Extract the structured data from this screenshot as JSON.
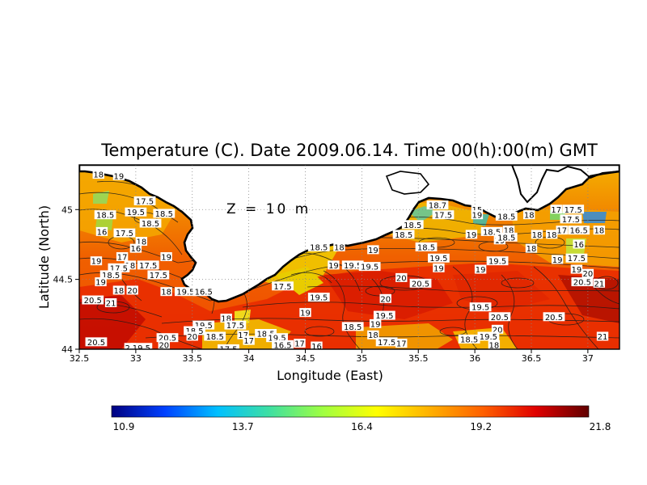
{
  "title": "Temperature (C). Date 2009.06.14. Time 00(h):00(m) GMT",
  "depth_label": "Z = 10 m",
  "xlabel": "Longitude (East)",
  "ylabel": "Latitude (North)",
  "x_ticks": [
    "32.5",
    "33",
    "33.5",
    "34",
    "34.5",
    "35",
    "35.5",
    "36",
    "36.5",
    "37"
  ],
  "y_ticks": [
    "44",
    "44.5",
    "45"
  ],
  "colorbar": {
    "labels": [
      "10.9",
      "13.7",
      "16.4",
      "19.2",
      "21.8"
    ],
    "colors": [
      "#000080",
      "#0040ff",
      "#00c0ff",
      "#40e0a0",
      "#a0ff40",
      "#ffff00",
      "#ffb000",
      "#ff6000",
      "#e00000",
      "#600000"
    ]
  },
  "contour_labels": [
    {
      "t": "18",
      "lon": 32.67,
      "lat": 45.25
    },
    {
      "t": "19",
      "lon": 32.85,
      "lat": 45.24
    },
    {
      "t": "17.5",
      "lon": 33.08,
      "lat": 45.06
    },
    {
      "t": "19.5",
      "lon": 33.0,
      "lat": 44.98
    },
    {
      "t": "18.5",
      "lon": 33.25,
      "lat": 44.97
    },
    {
      "t": "18.5",
      "lon": 32.73,
      "lat": 44.96
    },
    {
      "t": "18.5",
      "lon": 33.13,
      "lat": 44.9
    },
    {
      "t": "16",
      "lon": 32.7,
      "lat": 44.84
    },
    {
      "t": "17.5",
      "lon": 32.9,
      "lat": 44.83
    },
    {
      "t": "18",
      "lon": 33.05,
      "lat": 44.77
    },
    {
      "t": "17",
      "lon": 32.88,
      "lat": 44.66
    },
    {
      "t": "16",
      "lon": 33.0,
      "lat": 44.72
    },
    {
      "t": "18",
      "lon": 32.95,
      "lat": 44.6
    },
    {
      "t": "17.5",
      "lon": 33.11,
      "lat": 44.6
    },
    {
      "t": "19",
      "lon": 32.65,
      "lat": 44.63
    },
    {
      "t": "17.5",
      "lon": 32.85,
      "lat": 44.58
    },
    {
      "t": "18.5",
      "lon": 32.78,
      "lat": 44.53
    },
    {
      "t": "17.5",
      "lon": 33.2,
      "lat": 44.53
    },
    {
      "t": "19",
      "lon": 32.69,
      "lat": 44.48
    },
    {
      "t": "18",
      "lon": 32.85,
      "lat": 44.42
    },
    {
      "t": "20",
      "lon": 32.97,
      "lat": 44.42
    },
    {
      "t": "20.5",
      "lon": 32.62,
      "lat": 44.35
    },
    {
      "t": "21",
      "lon": 32.78,
      "lat": 44.33
    },
    {
      "t": "18",
      "lon": 33.27,
      "lat": 44.41
    },
    {
      "t": "19.5",
      "lon": 33.44,
      "lat": 44.41
    },
    {
      "t": "16.5",
      "lon": 33.6,
      "lat": 44.41
    },
    {
      "t": "19",
      "lon": 33.27,
      "lat": 44.66
    },
    {
      "t": "18",
      "lon": 33.8,
      "lat": 44.22
    },
    {
      "t": "19.5",
      "lon": 33.6,
      "lat": 44.17
    },
    {
      "t": "17.5",
      "lon": 33.88,
      "lat": 44.17
    },
    {
      "t": "18.5",
      "lon": 33.52,
      "lat": 44.13
    },
    {
      "t": "20",
      "lon": 33.5,
      "lat": 44.09
    },
    {
      "t": "18.5",
      "lon": 33.7,
      "lat": 44.09
    },
    {
      "t": "17",
      "lon": 33.95,
      "lat": 44.1
    },
    {
      "t": "20.5",
      "lon": 33.28,
      "lat": 44.08
    },
    {
      "t": "20",
      "lon": 33.25,
      "lat": 44.03
    },
    {
      "t": "20.5",
      "lon": 32.65,
      "lat": 44.05
    },
    {
      "t": "20",
      "lon": 32.95,
      "lat": 44.01
    },
    {
      "t": "19.5",
      "lon": 33.05,
      "lat": 44.01
    },
    {
      "t": "17.5",
      "lon": 33.82,
      "lat": 44.0
    },
    {
      "t": "17",
      "lon": 34.0,
      "lat": 44.06
    },
    {
      "t": "18.5",
      "lon": 34.15,
      "lat": 44.11
    },
    {
      "t": "19.5",
      "lon": 34.25,
      "lat": 44.08
    },
    {
      "t": "16.5",
      "lon": 34.3,
      "lat": 44.03
    },
    {
      "t": "17",
      "lon": 34.45,
      "lat": 44.04
    },
    {
      "t": "16",
      "lon": 34.6,
      "lat": 44.02
    },
    {
      "t": "17.5",
      "lon": 34.3,
      "lat": 44.45
    },
    {
      "t": "19.5",
      "lon": 34.62,
      "lat": 44.37
    },
    {
      "t": "19",
      "lon": 34.5,
      "lat": 44.26
    },
    {
      "t": "18.5",
      "lon": 34.62,
      "lat": 44.73
    },
    {
      "t": "18",
      "lon": 34.8,
      "lat": 44.73
    },
    {
      "t": "19",
      "lon": 34.75,
      "lat": 44.6
    },
    {
      "t": "19.5",
      "lon": 34.92,
      "lat": 44.6
    },
    {
      "t": "19",
      "lon": 35.1,
      "lat": 44.71
    },
    {
      "t": "19.5",
      "lon": 35.07,
      "lat": 44.59
    },
    {
      "t": "20",
      "lon": 35.35,
      "lat": 44.51
    },
    {
      "t": "20.5",
      "lon": 35.52,
      "lat": 44.47
    },
    {
      "t": "20",
      "lon": 35.21,
      "lat": 44.36
    },
    {
      "t": "19.5",
      "lon": 35.2,
      "lat": 44.24
    },
    {
      "t": "19",
      "lon": 35.12,
      "lat": 44.18
    },
    {
      "t": "18.5",
      "lon": 34.92,
      "lat": 44.16
    },
    {
      "t": "18",
      "lon": 35.1,
      "lat": 44.1
    },
    {
      "t": "17.5",
      "lon": 35.22,
      "lat": 44.05
    },
    {
      "t": "17",
      "lon": 35.35,
      "lat": 44.04
    },
    {
      "t": "18.7",
      "lon": 35.67,
      "lat": 45.03
    },
    {
      "t": "17.5",
      "lon": 35.72,
      "lat": 44.96
    },
    {
      "t": "18.5",
      "lon": 35.45,
      "lat": 44.89
    },
    {
      "t": "18.5",
      "lon": 35.37,
      "lat": 44.82
    },
    {
      "t": "18.5",
      "lon": 35.57,
      "lat": 44.73
    },
    {
      "t": "19.5",
      "lon": 35.68,
      "lat": 44.65
    },
    {
      "t": "19",
      "lon": 35.68,
      "lat": 44.58
    },
    {
      "t": "19",
      "lon": 35.97,
      "lat": 44.82
    },
    {
      "t": "19",
      "lon": 36.05,
      "lat": 44.57
    },
    {
      "t": "15",
      "lon": 36.02,
      "lat": 45.0
    },
    {
      "t": "19",
      "lon": 36.02,
      "lat": 44.96
    },
    {
      "t": "18.5",
      "lon": 36.28,
      "lat": 44.95
    },
    {
      "t": "18",
      "lon": 36.48,
      "lat": 44.96
    },
    {
      "t": "17",
      "lon": 36.72,
      "lat": 45.0
    },
    {
      "t": "17.5",
      "lon": 36.87,
      "lat": 45.0
    },
    {
      "t": "17.5",
      "lon": 36.85,
      "lat": 44.93
    },
    {
      "t": "18.5",
      "lon": 36.15,
      "lat": 44.84
    },
    {
      "t": "18",
      "lon": 36.3,
      "lat": 44.85
    },
    {
      "t": "19",
      "lon": 36.22,
      "lat": 44.78
    },
    {
      "t": "18.5",
      "lon": 36.28,
      "lat": 44.8
    },
    {
      "t": "18",
      "lon": 36.55,
      "lat": 44.82
    },
    {
      "t": "18",
      "lon": 36.68,
      "lat": 44.82
    },
    {
      "t": "17",
      "lon": 36.77,
      "lat": 44.85
    },
    {
      "t": "16.5",
      "lon": 36.92,
      "lat": 44.85
    },
    {
      "t": "18",
      "lon": 37.1,
      "lat": 44.85
    },
    {
      "t": "16",
      "lon": 36.92,
      "lat": 44.75
    },
    {
      "t": "18",
      "lon": 36.5,
      "lat": 44.72
    },
    {
      "t": "19",
      "lon": 36.73,
      "lat": 44.64
    },
    {
      "t": "17.5",
      "lon": 36.9,
      "lat": 44.65
    },
    {
      "t": "19",
      "lon": 36.9,
      "lat": 44.57
    },
    {
      "t": "20",
      "lon": 37.0,
      "lat": 44.54
    },
    {
      "t": "20.5",
      "lon": 36.95,
      "lat": 44.48
    },
    {
      "t": "21",
      "lon": 37.1,
      "lat": 44.47
    },
    {
      "t": "19.5",
      "lon": 36.2,
      "lat": 44.63
    },
    {
      "t": "19.5",
      "lon": 36.05,
      "lat": 44.3
    },
    {
      "t": "20.5",
      "lon": 36.22,
      "lat": 44.23
    },
    {
      "t": "20",
      "lon": 36.2,
      "lat": 44.14
    },
    {
      "t": "19.5",
      "lon": 36.12,
      "lat": 44.09
    },
    {
      "t": "18.5",
      "lon": 35.95,
      "lat": 44.07
    },
    {
      "t": "18",
      "lon": 36.17,
      "lat": 44.03
    },
    {
      "t": "20.5",
      "lon": 36.7,
      "lat": 44.23
    },
    {
      "t": "21",
      "lon": 37.13,
      "lat": 44.09
    }
  ]
}
